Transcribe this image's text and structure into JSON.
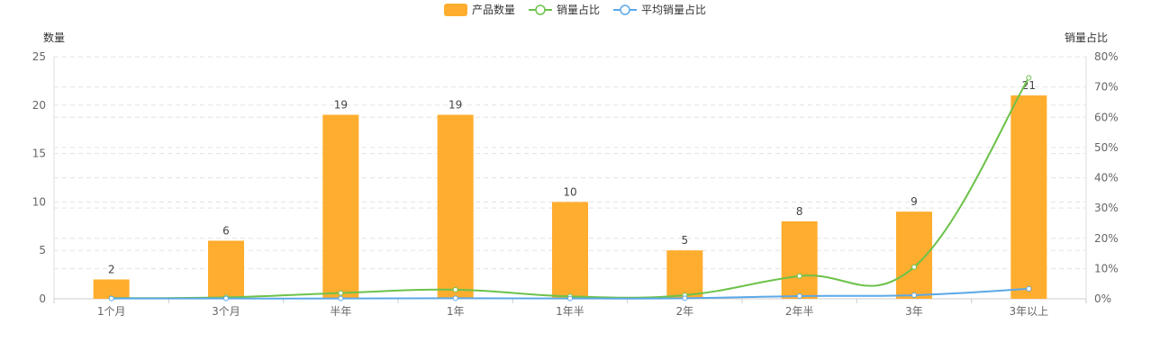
{
  "chart_data": {
    "type": "bar",
    "categories": [
      "1个月",
      "3个月",
      "半年",
      "1年",
      "1年半",
      "2年",
      "2年半",
      "3年",
      "3年以上"
    ],
    "series": [
      {
        "name": "产品数量",
        "type": "bar",
        "axis": "left",
        "color": "#ffad2f",
        "values": [
          2,
          6,
          19,
          19,
          10,
          5,
          8,
          9,
          21
        ]
      },
      {
        "name": "销量占比",
        "type": "line",
        "axis": "right",
        "color": "#6cc24a",
        "values": [
          0.2,
          0.5,
          1.9,
          3.0,
          0.8,
          1.2,
          7.5,
          10.5,
          73.0
        ]
      },
      {
        "name": "平均销量占比",
        "type": "line",
        "axis": "right",
        "color": "#5ba8e8",
        "values": [
          0.1,
          0.1,
          0.1,
          0.2,
          0.1,
          0.2,
          0.9,
          1.2,
          3.3
        ]
      }
    ],
    "yleft": {
      "label": "数量",
      "ticks": [
        "0",
        "5",
        "10",
        "15",
        "20",
        "25"
      ],
      "lim": [
        0,
        25
      ]
    },
    "yright": {
      "label": "销量占比",
      "ticks": [
        "0%",
        "10%",
        "20%",
        "30%",
        "40%",
        "50%",
        "60%",
        "70%",
        "80%"
      ],
      "lim": [
        0,
        80
      ]
    },
    "legend_position": "top-center",
    "grid": true
  }
}
